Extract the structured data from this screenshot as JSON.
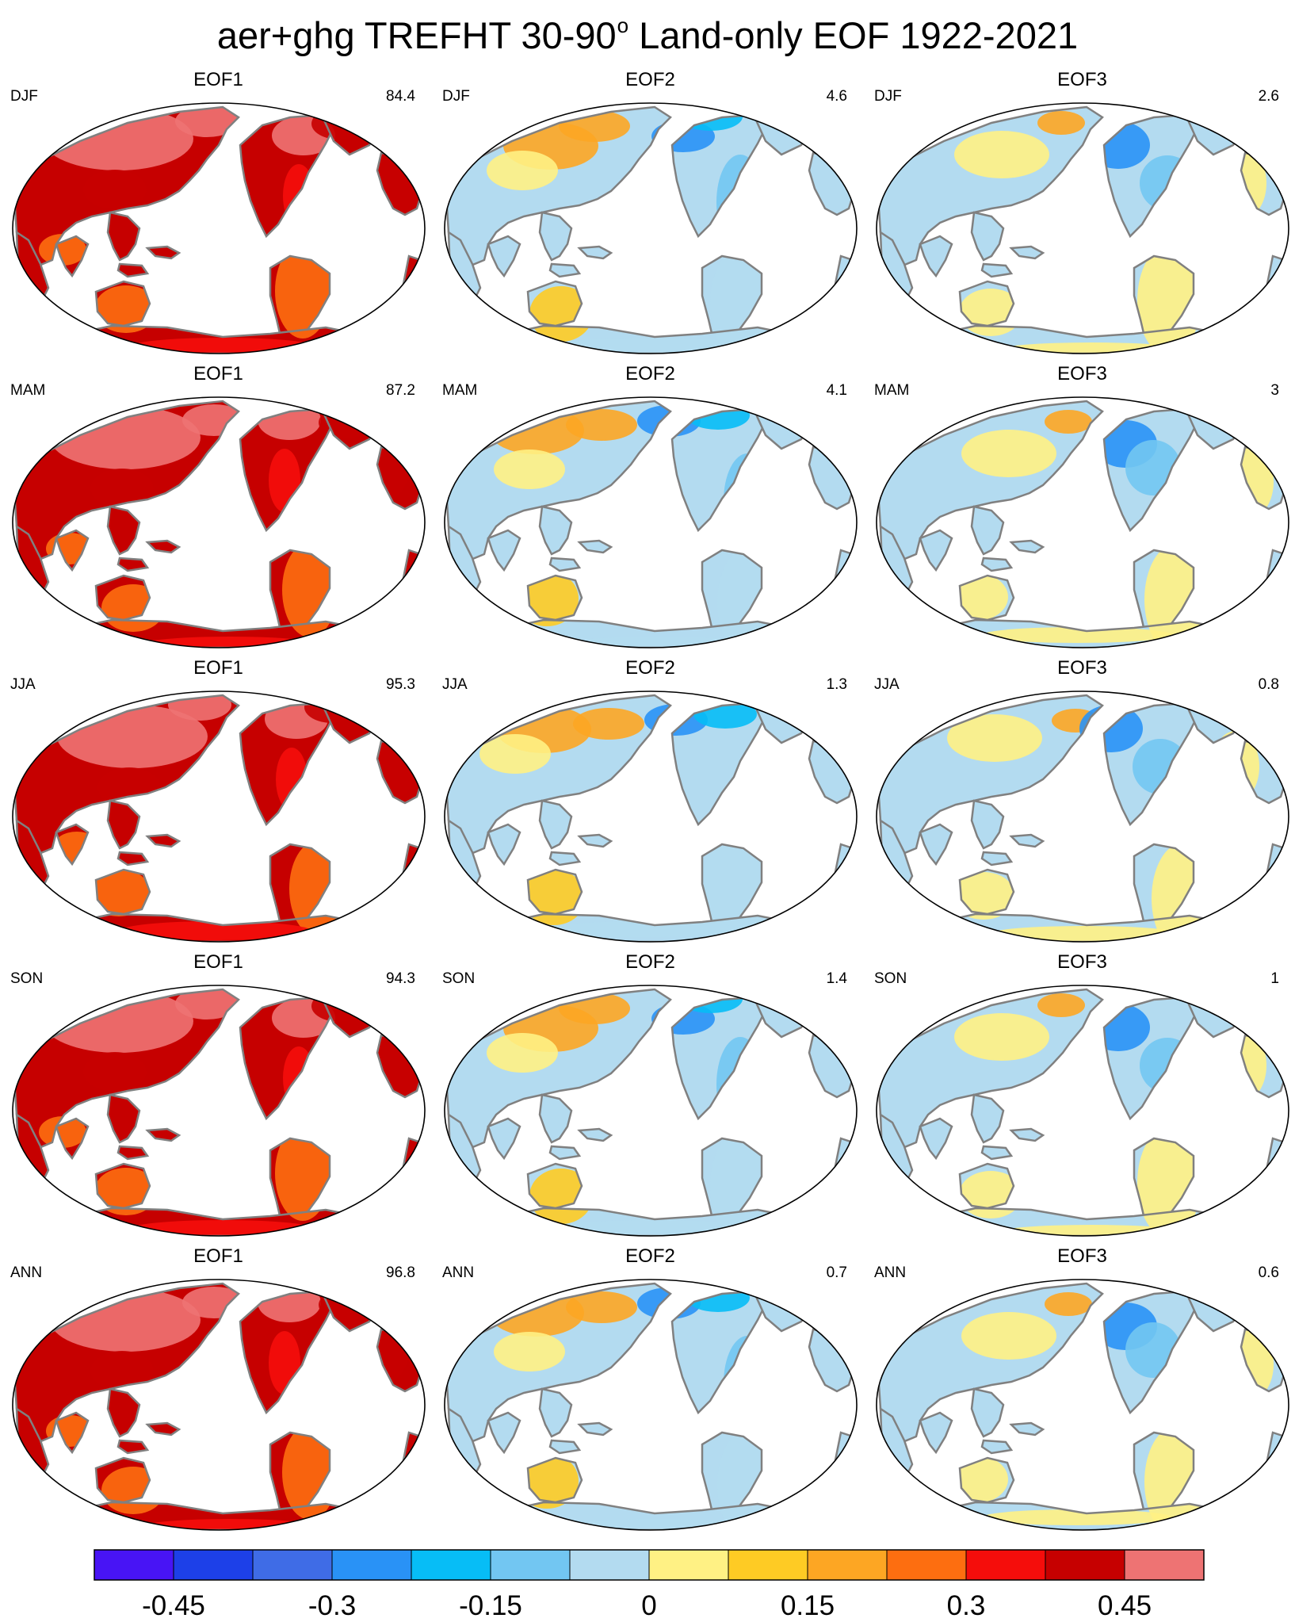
{
  "title_main": "aer+ghg TREFHT 30-90",
  "title_degree": "o",
  "title_rest": " Land-only EOF 1922-2021",
  "colors": {
    "scale": [
      "#4814f5",
      "#1d40e8",
      "#3f6ce6",
      "#2992f6",
      "#07bdf6",
      "#72c6f2",
      "#b3dbf0",
      "#fff184",
      "#fecb24",
      "#fda623",
      "#fd6e10",
      "#f50d0b",
      "#c60000",
      "#ee7373"
    ],
    "coastline": "#808080",
    "outline": "#000000"
  },
  "colorbar": {
    "labels": [
      "-0.45",
      "-0.3",
      "-0.15",
      "0",
      "0.15",
      "0.3",
      "0.45"
    ]
  },
  "panels": [
    {
      "title": "EOF1",
      "season": "DJF",
      "variance": "84.4",
      "eof": 1,
      "row": 0,
      "col": 0
    },
    {
      "title": "EOF2",
      "season": "DJF",
      "variance": "4.6",
      "eof": 2,
      "row": 0,
      "col": 1
    },
    {
      "title": "EOF3",
      "season": "DJF",
      "variance": "2.6",
      "eof": 3,
      "row": 0,
      "col": 2
    },
    {
      "title": "EOF1",
      "season": "MAM",
      "variance": "87.2",
      "eof": 1,
      "row": 1,
      "col": 0
    },
    {
      "title": "EOF2",
      "season": "MAM",
      "variance": "4.1",
      "eof": 2,
      "row": 1,
      "col": 1
    },
    {
      "title": "EOF3",
      "season": "MAM",
      "variance": "3",
      "eof": 3,
      "row": 1,
      "col": 2
    },
    {
      "title": "EOF1",
      "season": "JJA",
      "variance": "95.3",
      "eof": 1,
      "row": 2,
      "col": 0
    },
    {
      "title": "EOF2",
      "season": "JJA",
      "variance": "1.3",
      "eof": 2,
      "row": 2,
      "col": 1
    },
    {
      "title": "EOF3",
      "season": "JJA",
      "variance": "0.8",
      "eof": 3,
      "row": 2,
      "col": 2
    },
    {
      "title": "EOF1",
      "season": "SON",
      "variance": "94.3",
      "eof": 1,
      "row": 3,
      "col": 0
    },
    {
      "title": "EOF2",
      "season": "SON",
      "variance": "1.4",
      "eof": 2,
      "row": 3,
      "col": 1
    },
    {
      "title": "EOF3",
      "season": "SON",
      "variance": "1",
      "eof": 3,
      "row": 3,
      "col": 2
    },
    {
      "title": "EOF1",
      "season": "ANN",
      "variance": "96.8",
      "eof": 1,
      "row": 4,
      "col": 0
    },
    {
      "title": "EOF2",
      "season": "ANN",
      "variance": "0.7",
      "eof": 2,
      "row": 4,
      "col": 1
    },
    {
      "title": "EOF3",
      "season": "ANN",
      "variance": "0.6",
      "eof": 3,
      "row": 4,
      "col": 2
    }
  ]
}
